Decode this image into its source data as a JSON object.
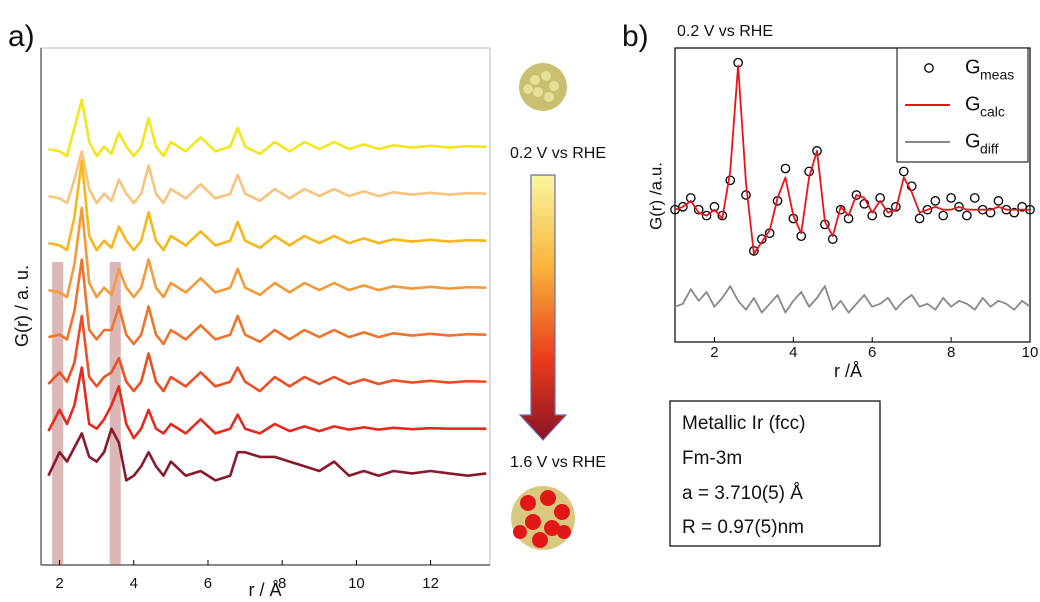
{
  "chart_data": [
    {
      "type": "line",
      "label": "a)",
      "x_label": "r  / Å",
      "y_label": "G(r) / a. u.",
      "annotations": [
        "0.2 V vs RHE",
        "1.6 V vs RHE"
      ],
      "xlim": [
        1.5,
        13.6
      ],
      "xticks": [
        2,
        4,
        6,
        8,
        10,
        12
      ],
      "ylim": [
        0,
        11
      ],
      "highlight_bands": [
        [
          1.8,
          2.1
        ],
        [
          3.35,
          3.65
        ]
      ],
      "x": [
        1.7,
        2.0,
        2.2,
        2.4,
        2.6,
        2.8,
        3.0,
        3.2,
        3.4,
        3.6,
        3.8,
        4.0,
        4.2,
        4.4,
        4.6,
        4.8,
        5.0,
        5.4,
        5.8,
        6.2,
        6.6,
        6.8,
        7.0,
        7.4,
        7.8,
        8.2,
        8.6,
        9.0,
        9.4,
        9.8,
        10.2,
        10.6,
        11.0,
        11.5,
        12.0,
        12.5,
        13.0,
        13.5
      ],
      "series": [
        {
          "color": "#f3e61e",
          "values": [
            8.85,
            8.8,
            8.7,
            9.3,
            9.9,
            9.0,
            8.7,
            8.9,
            8.75,
            9.2,
            8.9,
            8.7,
            8.9,
            9.5,
            8.9,
            8.7,
            9.0,
            8.8,
            9.1,
            8.8,
            8.9,
            9.3,
            8.9,
            8.75,
            9.0,
            8.8,
            9.0,
            8.85,
            9.0,
            8.85,
            8.95,
            8.85,
            8.93,
            8.88,
            8.92,
            8.88,
            8.91,
            8.9
          ]
        },
        {
          "color": "#f7c47e",
          "values": [
            7.85,
            7.8,
            7.7,
            8.2,
            8.8,
            8.0,
            7.7,
            7.9,
            7.75,
            8.2,
            7.9,
            7.7,
            7.9,
            8.5,
            7.9,
            7.7,
            8.0,
            7.8,
            8.1,
            7.8,
            7.9,
            8.3,
            7.9,
            7.75,
            8.0,
            7.8,
            8.0,
            7.85,
            8.0,
            7.85,
            7.95,
            7.85,
            7.93,
            7.88,
            7.92,
            7.88,
            7.91,
            7.9
          ]
        },
        {
          "color": "#f7b71b",
          "values": [
            6.85,
            6.8,
            6.7,
            7.4,
            8.6,
            7.0,
            6.7,
            6.9,
            6.75,
            7.2,
            6.9,
            6.7,
            6.9,
            7.5,
            6.9,
            6.7,
            7.0,
            6.8,
            7.1,
            6.8,
            6.9,
            7.3,
            6.9,
            6.75,
            7.0,
            6.8,
            7.0,
            6.85,
            7.0,
            6.85,
            6.95,
            6.85,
            6.93,
            6.88,
            6.92,
            6.88,
            6.91,
            6.9
          ]
        },
        {
          "color": "#f49a3a",
          "values": [
            5.85,
            5.8,
            5.7,
            6.4,
            7.6,
            6.0,
            5.7,
            5.9,
            5.75,
            6.3,
            5.9,
            5.7,
            5.9,
            6.5,
            5.9,
            5.7,
            6.0,
            5.8,
            6.1,
            5.8,
            5.9,
            6.3,
            5.9,
            5.75,
            6.0,
            5.8,
            6.0,
            5.85,
            6.0,
            5.85,
            5.95,
            5.85,
            5.93,
            5.88,
            5.92,
            5.88,
            5.91,
            5.9
          ]
        },
        {
          "color": "#ef742b",
          "values": [
            4.85,
            4.9,
            4.8,
            5.4,
            6.5,
            5.0,
            4.8,
            5.0,
            5.0,
            5.5,
            4.9,
            4.7,
            4.9,
            5.5,
            4.9,
            4.7,
            5.0,
            4.8,
            5.1,
            4.8,
            4.9,
            5.3,
            4.9,
            4.75,
            5.0,
            4.8,
            5.0,
            4.85,
            5.0,
            4.85,
            4.95,
            4.85,
            4.93,
            4.88,
            4.92,
            4.88,
            4.91,
            4.9
          ]
        },
        {
          "color": "#ea5024",
          "values": [
            3.85,
            4.1,
            3.9,
            4.3,
            5.3,
            4.0,
            3.8,
            4.0,
            4.1,
            4.4,
            3.9,
            3.7,
            3.9,
            4.5,
            3.9,
            3.7,
            4.0,
            3.8,
            4.1,
            3.8,
            3.9,
            4.2,
            3.9,
            3.7,
            4.0,
            3.8,
            4.0,
            3.85,
            4.0,
            3.85,
            3.95,
            3.85,
            3.93,
            3.88,
            3.92,
            3.88,
            3.91,
            3.9
          ]
        },
        {
          "color": "#e42a1c",
          "values": [
            2.85,
            3.3,
            3.0,
            3.4,
            4.2,
            3.0,
            2.9,
            3.1,
            3.4,
            3.8,
            3.0,
            2.7,
            2.9,
            3.3,
            2.9,
            2.8,
            3.0,
            2.8,
            3.1,
            2.8,
            2.9,
            3.2,
            2.9,
            2.8,
            3.0,
            2.85,
            2.95,
            2.85,
            2.95,
            2.88,
            2.93,
            2.88,
            2.92,
            2.89,
            2.91,
            2.9,
            2.9,
            2.9
          ]
        },
        {
          "color": "#871a2c",
          "values": [
            1.9,
            2.4,
            2.2,
            2.5,
            2.8,
            2.3,
            2.2,
            2.4,
            2.9,
            2.6,
            1.8,
            1.9,
            2.1,
            2.4,
            2.1,
            1.9,
            2.2,
            1.9,
            2.0,
            1.8,
            1.9,
            2.4,
            2.4,
            2.3,
            2.3,
            2.2,
            2.1,
            2.0,
            2.2,
            1.9,
            2.0,
            1.9,
            2.0,
            1.95,
            2.0,
            1.95,
            1.9,
            1.95
          ]
        }
      ]
    },
    {
      "type": "line",
      "label": "b)",
      "title": "0.2 V vs RHE",
      "x_label": "r /Å",
      "y_label": "G(r)  /a.u.",
      "xlim": [
        1,
        10
      ],
      "xticks": [
        2,
        4,
        6,
        8,
        10
      ],
      "ylim": [
        0,
        10
      ],
      "legend": "upper right",
      "info_box": [
        "Metallic Ir (fcc)",
        "Fm-3m",
        "a = 3.710(5) Å",
        "R = 0.97(5)nm"
      ],
      "x": [
        1.0,
        1.2,
        1.4,
        1.6,
        1.8,
        2.0,
        2.2,
        2.4,
        2.6,
        2.8,
        3.0,
        3.2,
        3.4,
        3.6,
        3.8,
        4.0,
        4.2,
        4.4,
        4.6,
        4.8,
        5.0,
        5.2,
        5.4,
        5.6,
        5.8,
        6.0,
        6.2,
        6.4,
        6.6,
        6.8,
        7.0,
        7.2,
        7.4,
        7.6,
        7.8,
        8.0,
        8.2,
        8.4,
        8.6,
        8.8,
        9.0,
        9.2,
        9.4,
        9.6,
        9.8,
        10.0
      ],
      "series": [
        {
          "name": "G",
          "subscript": "meas",
          "marker": "circle",
          "color": "#000000",
          "values": [
            4.5,
            4.6,
            4.9,
            4.5,
            4.3,
            4.6,
            4.3,
            5.5,
            9.5,
            5.0,
            3.1,
            3.5,
            3.7,
            4.8,
            5.9,
            4.2,
            3.6,
            5.8,
            6.5,
            4.0,
            3.5,
            4.5,
            4.2,
            5.0,
            4.7,
            4.3,
            4.9,
            4.4,
            4.6,
            5.8,
            5.3,
            4.2,
            4.5,
            4.8,
            4.3,
            4.9,
            4.6,
            4.3,
            4.9,
            4.5,
            4.4,
            4.8,
            4.5,
            4.4,
            4.6,
            4.5
          ]
        },
        {
          "name": "G",
          "subscript": "calc",
          "color": "#e8141a",
          "values": [
            4.5,
            4.6,
            4.8,
            4.4,
            4.3,
            4.5,
            4.2,
            5.8,
            9.4,
            5.4,
            3.0,
            3.4,
            3.8,
            4.9,
            5.6,
            4.3,
            3.7,
            5.6,
            6.5,
            4.1,
            3.6,
            4.6,
            4.3,
            5.0,
            4.9,
            4.4,
            4.8,
            4.4,
            4.5,
            5.6,
            5.1,
            4.4,
            4.5,
            4.6,
            4.5,
            4.5,
            4.6,
            4.5,
            4.5,
            4.5,
            4.5,
            4.6,
            4.5,
            4.5,
            4.5,
            4.5
          ]
        },
        {
          "name": "G",
          "subscript": "diff",
          "color": "#888888",
          "values": [
            1.2,
            1.3,
            1.8,
            1.4,
            1.7,
            1.2,
            1.5,
            1.9,
            1.4,
            1.1,
            1.5,
            1.0,
            1.3,
            1.6,
            1.0,
            1.4,
            1.7,
            1.2,
            1.5,
            1.9,
            1.1,
            1.4,
            1.0,
            1.3,
            1.6,
            1.2,
            1.3,
            1.5,
            1.1,
            1.4,
            1.6,
            1.2,
            1.3,
            1.1,
            1.5,
            1.2,
            1.4,
            1.3,
            1.1,
            1.5,
            1.2,
            1.4,
            1.3,
            1.1,
            1.4,
            1.2
          ]
        }
      ]
    }
  ]
}
